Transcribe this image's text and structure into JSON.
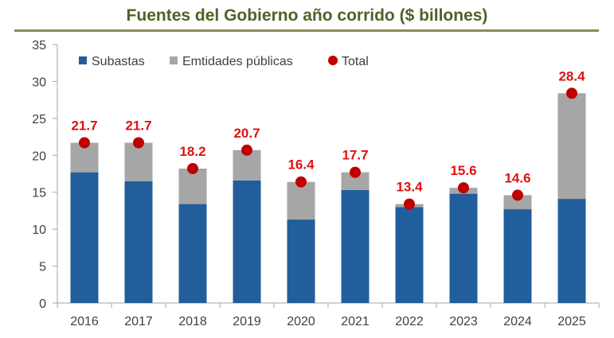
{
  "chart_data": {
    "type": "bar",
    "title": "Fuentes del Gobierno año corrido  ($ billones)",
    "categories": [
      "2016",
      "2017",
      "2018",
      "2019",
      "2020",
      "2021",
      "2022",
      "2023",
      "2024",
      "2025"
    ],
    "series": [
      {
        "name": "Subastas",
        "values": [
          17.7,
          16.5,
          13.4,
          16.6,
          11.3,
          15.3,
          13.0,
          14.8,
          12.7,
          14.1
        ],
        "color": "#215e9b"
      },
      {
        "name": "Emtidades públicas",
        "values": [
          4.0,
          5.2,
          4.8,
          4.1,
          5.1,
          2.4,
          0.4,
          0.8,
          1.9,
          14.3
        ],
        "color": "#a6a6a6"
      },
      {
        "name": "Total",
        "values": [
          21.7,
          21.7,
          18.2,
          20.7,
          16.4,
          17.7,
          13.4,
          15.6,
          14.6,
          28.4
        ],
        "color": "#c00000"
      }
    ],
    "total_labels": [
      "21.7",
      "21.7",
      "18.2",
      "20.7",
      "16.4",
      "17.7",
      "13.4",
      "15.6",
      "14.6",
      "28.4"
    ],
    "ylim": [
      0,
      35
    ],
    "yticks": [
      "0",
      "5",
      "10",
      "15",
      "20",
      "25",
      "30",
      "35"
    ],
    "xlabel": "",
    "ylabel": "",
    "legend_position": "top-left",
    "grid": false
  }
}
